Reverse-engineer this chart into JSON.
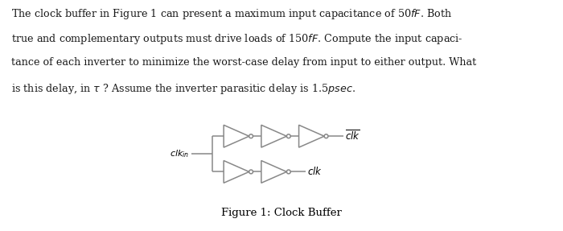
{
  "bg_color": "#ffffff",
  "text_color": "#1a1a1a",
  "line_color": "#888888",
  "fig_width": 7.0,
  "fig_height": 2.87,
  "text_lines": [
    "The clock buffer in Figure 1 can present a maximum input capacitance of 50$fF$. Both",
    "true and complementary outputs must drive loads of 150$fF$. Compute the input capaci-",
    "tance of each inverter to minimize the worst-case delay from input to either output. What",
    "is this delay, in $\\tau$ ? Assume the inverter parasitic delay is 1.5$psec$."
  ],
  "caption": "Figure 1: Clock Buffer",
  "clkin_label": "$clk_{in}$",
  "clkbar_label": "$\\overline{clk}$",
  "clk_label": "$clk$"
}
